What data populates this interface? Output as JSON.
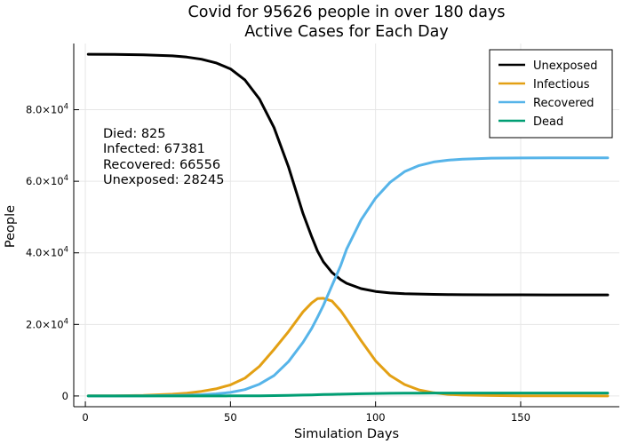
{
  "chart_data": {
    "type": "line",
    "title": [
      "Covid for 95626 people in  over 180 days",
      "Active Cases for Each Day"
    ],
    "xlabel": "Simulation Days",
    "ylabel": "People",
    "xlim": [
      -4,
      184
    ],
    "ylim": [
      -3000,
      98500
    ],
    "grid": true,
    "legend_position": "top-right",
    "xticks": [
      {
        "value": 0,
        "label": "0"
      },
      {
        "value": 50,
        "label": "50"
      },
      {
        "value": 100,
        "label": "100"
      },
      {
        "value": 150,
        "label": "150"
      }
    ],
    "yticks": [
      {
        "value": 0,
        "label": "0"
      },
      {
        "value": 20000,
        "mantissa": "2.0×10",
        "exp": "4"
      },
      {
        "value": 40000,
        "mantissa": "4.0×10",
        "exp": "4"
      },
      {
        "value": 60000,
        "mantissa": "6.0×10",
        "exp": "4"
      },
      {
        "value": 80000,
        "mantissa": "8.0×10",
        "exp": "4"
      }
    ],
    "annotations": [
      "Died: 825",
      "Infected: 67381",
      "Recovered: 66556",
      "Unexposed: 28245"
    ],
    "x": [
      1,
      10,
      20,
      30,
      35,
      40,
      45,
      50,
      55,
      60,
      65,
      70,
      75,
      78,
      80,
      82,
      85,
      88,
      90,
      95,
      100,
      105,
      110,
      115,
      120,
      125,
      130,
      140,
      150,
      160,
      170,
      180
    ],
    "series": [
      {
        "name": "Unexposed",
        "color": "#000000",
        "values": [
          95500,
          95450,
          95350,
          95050,
          94700,
          94100,
          93100,
          91400,
          88300,
          83000,
          75000,
          64000,
          51000,
          44500,
          40500,
          37500,
          34500,
          32500,
          31500,
          30000,
          29200,
          28800,
          28600,
          28500,
          28400,
          28350,
          28300,
          28280,
          28260,
          28250,
          28245,
          28245
        ]
      },
      {
        "name": "Infectious",
        "color": "#e3a014",
        "values": [
          20,
          40,
          150,
          500,
          800,
          1300,
          2000,
          3100,
          5000,
          8300,
          13000,
          18000,
          23500,
          26000,
          27200,
          27300,
          26500,
          23800,
          21500,
          15500,
          9800,
          5700,
          3200,
          1700,
          900,
          450,
          250,
          120,
          60,
          30,
          20,
          15
        ]
      },
      {
        "name": "Recovered",
        "color": "#56b4e9",
        "values": [
          0,
          10,
          50,
          120,
          200,
          350,
          600,
          1000,
          1800,
          3300,
          5700,
          9600,
          15000,
          18900,
          22000,
          25300,
          30900,
          36500,
          41000,
          49200,
          55300,
          59700,
          62700,
          64400,
          65400,
          65900,
          66200,
          66450,
          66520,
          66545,
          66550,
          66556
        ]
      },
      {
        "name": "Dead",
        "color": "#009e73",
        "values": [
          0,
          0,
          1,
          4,
          6,
          10,
          15,
          20,
          35,
          60,
          100,
          160,
          250,
          300,
          350,
          400,
          450,
          500,
          540,
          620,
          700,
          750,
          780,
          800,
          810,
          815,
          820,
          822,
          823,
          824,
          825,
          825
        ]
      }
    ]
  }
}
